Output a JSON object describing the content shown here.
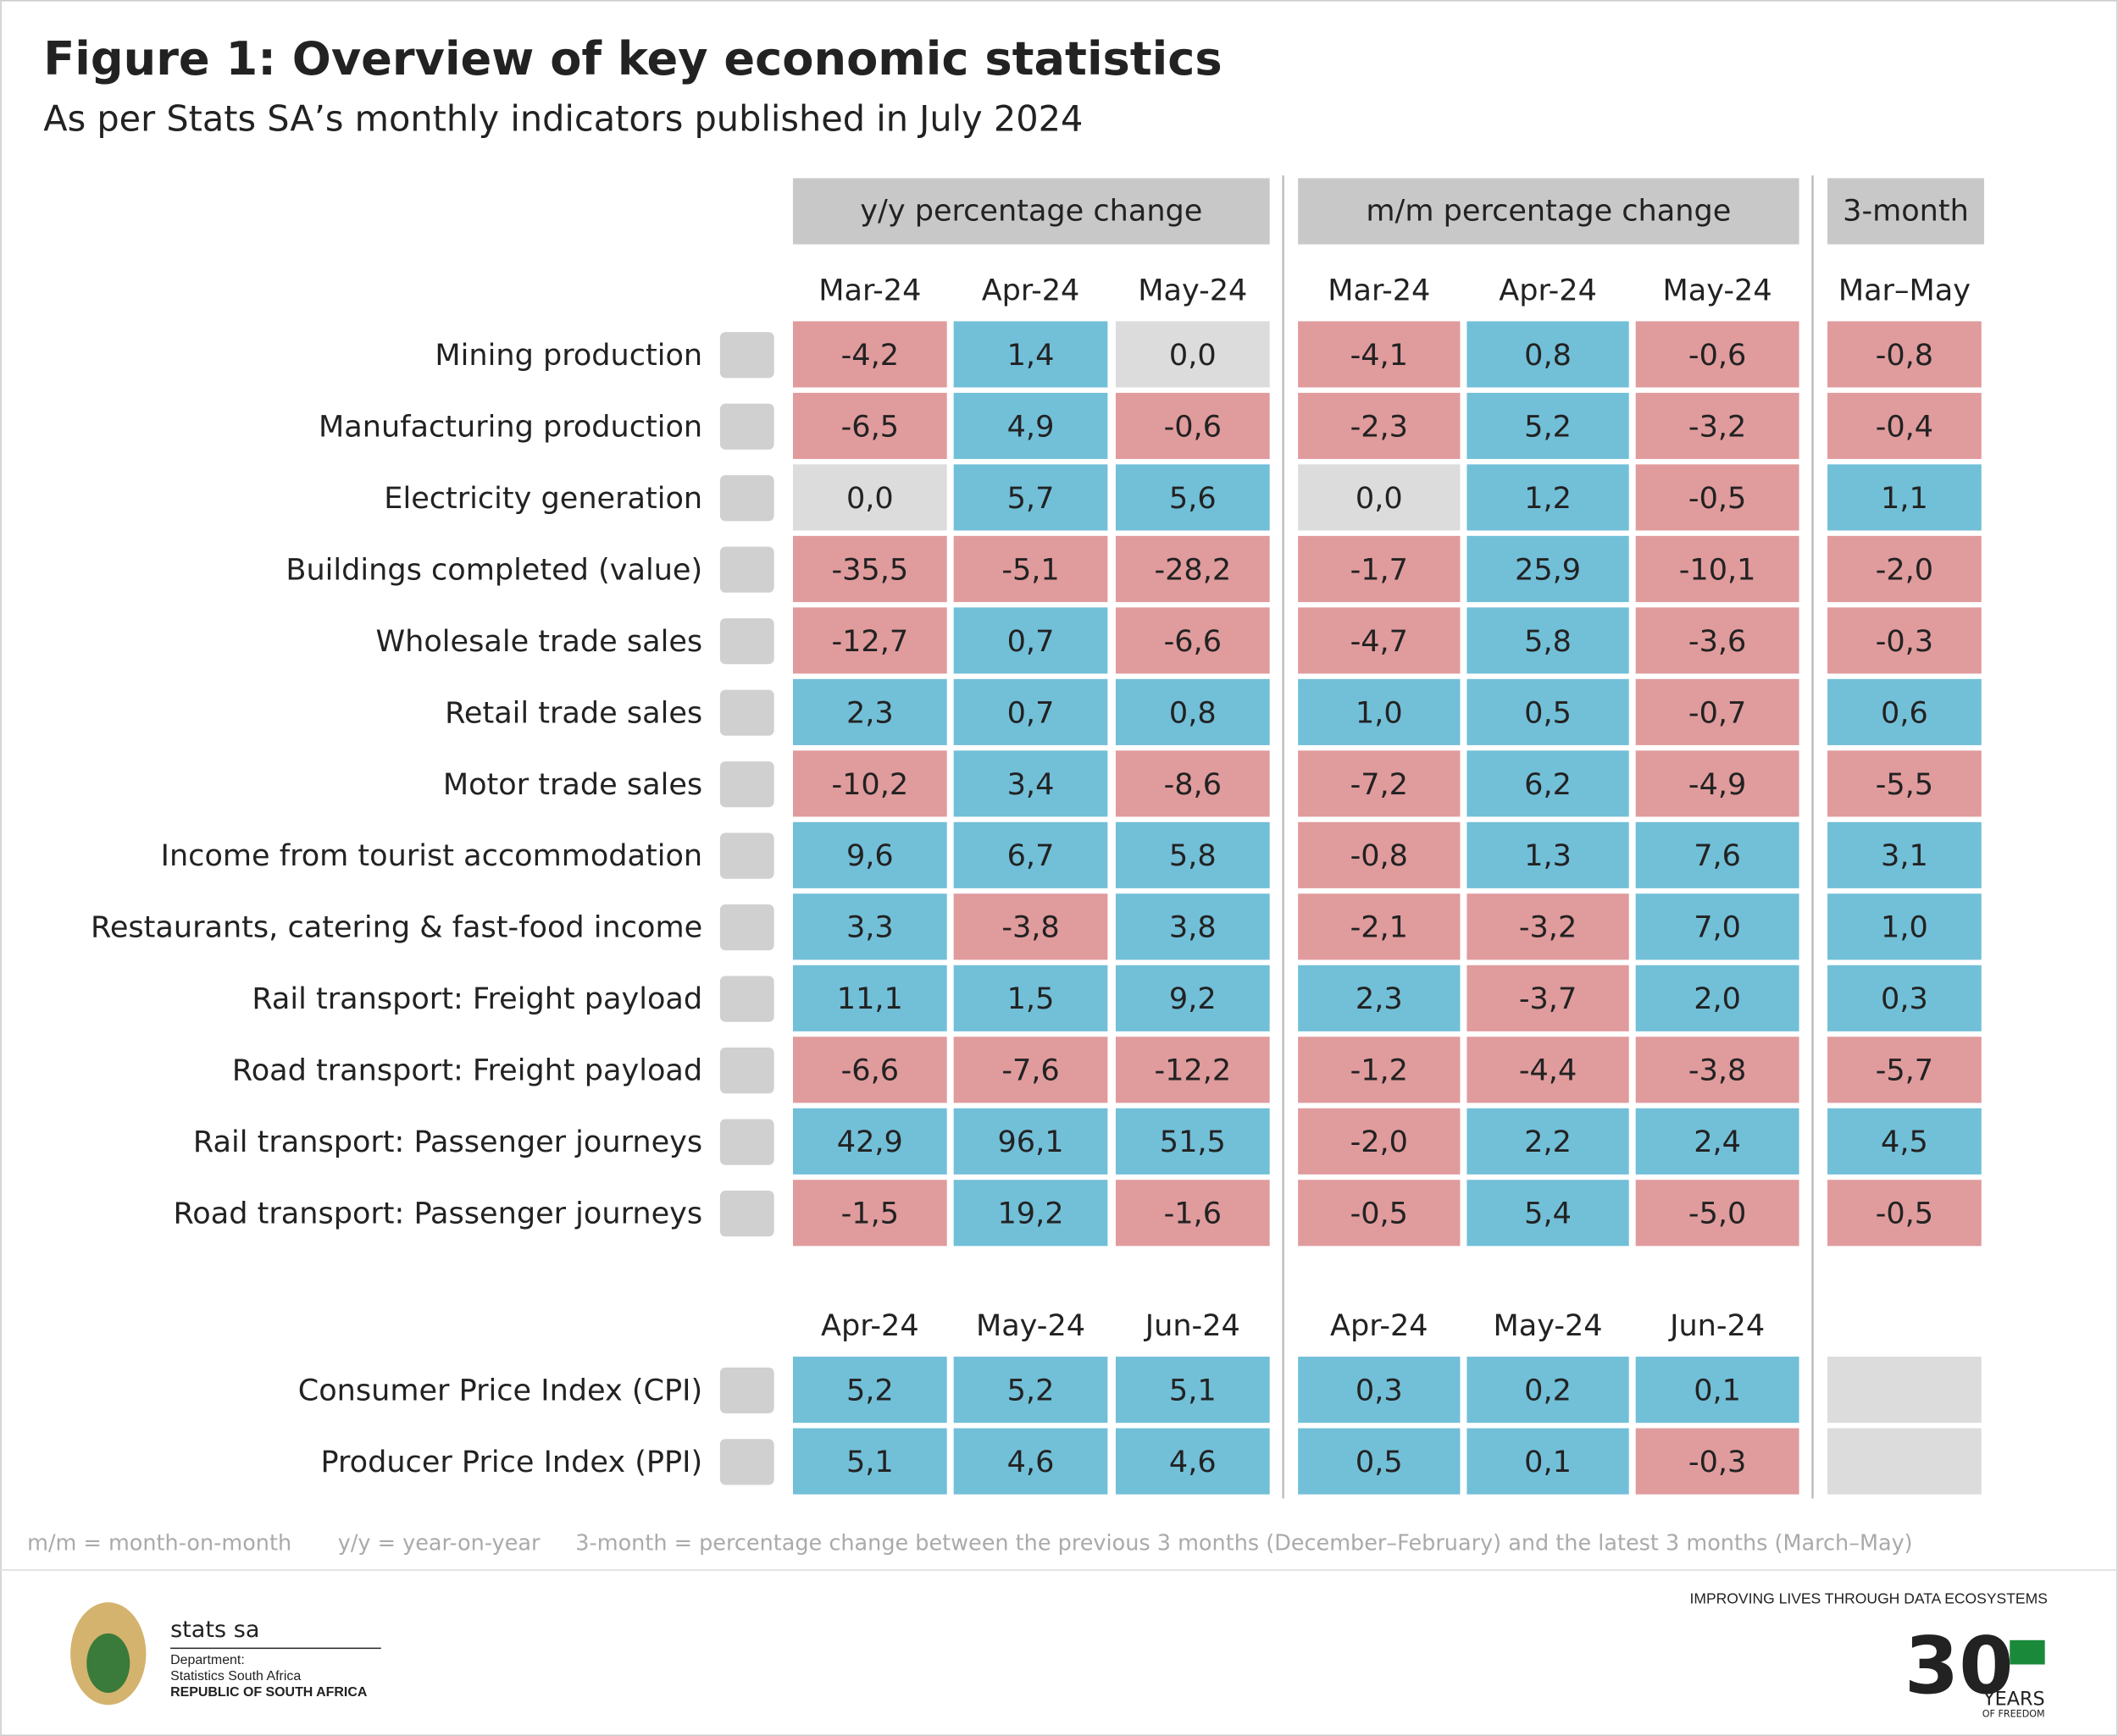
{
  "header": {
    "title": "Figure 1: Overview of key economic statistics",
    "subtitle": "As per Stats SA’s monthly indicators published in July 2024"
  },
  "groups": [
    "y/y percentage change",
    "m/m percentage change",
    "3-month"
  ],
  "columns": [
    "Mar-24",
    "Apr-24",
    "May-24",
    "Mar-24",
    "Apr-24",
    "May-24",
    "Mar–May"
  ],
  "rows": [
    {
      "label": "Mining production",
      "values": [
        "-4,2",
        "1,4",
        "0,0",
        "-4,1",
        "0,8",
        "-0,6",
        "-0,8"
      ]
    },
    {
      "label": "Manufacturing production",
      "values": [
        "-6,5",
        "4,9",
        "-0,6",
        "-2,3",
        "5,2",
        "-3,2",
        "-0,4"
      ]
    },
    {
      "label": "Electricity generation",
      "values": [
        "0,0",
        "5,7",
        "5,6",
        "0,0",
        "1,2",
        "-0,5",
        "1,1"
      ]
    },
    {
      "label": "Buildings completed (value)",
      "values": [
        "-35,5",
        "-5,1",
        "-28,2",
        "-1,7",
        "25,9",
        "-10,1",
        "-2,0"
      ]
    },
    {
      "label": "Wholesale trade sales",
      "values": [
        "-12,7",
        "0,7",
        "-6,6",
        "-4,7",
        "5,8",
        "-3,6",
        "-0,3"
      ]
    },
    {
      "label": "Retail trade sales",
      "values": [
        "2,3",
        "0,7",
        "0,8",
        "1,0",
        "0,5",
        "-0,7",
        "0,6"
      ]
    },
    {
      "label": "Motor trade sales",
      "values": [
        "-10,2",
        "3,4",
        "-8,6",
        "-7,2",
        "6,2",
        "-4,9",
        "-5,5"
      ]
    },
    {
      "label": "Income from tourist accommodation",
      "values": [
        "9,6",
        "6,7",
        "5,8",
        "-0,8",
        "1,3",
        "7,6",
        "3,1"
      ]
    },
    {
      "label": "Restaurants, catering & fast-food income",
      "values": [
        "3,3",
        "-3,8",
        "3,8",
        "-2,1",
        "-3,2",
        "7,0",
        "1,0"
      ]
    },
    {
      "label": "Rail transport: Freight payload",
      "values": [
        "11,1",
        "1,5",
        "9,2",
        "2,3",
        "-3,7",
        "2,0",
        "0,3"
      ]
    },
    {
      "label": "Road transport: Freight payload",
      "values": [
        "-6,6",
        "-7,6",
        "-12,2",
        "-1,2",
        "-4,4",
        "-3,8",
        "-5,7"
      ]
    },
    {
      "label": "Rail transport: Passenger journeys",
      "values": [
        "42,9",
        "96,1",
        "51,5",
        "-2,0",
        "2,2",
        "2,4",
        "4,5"
      ]
    },
    {
      "label": "Road transport: Passenger journeys",
      "values": [
        "-1,5",
        "19,2",
        "-1,6",
        "-0,5",
        "5,4",
        "-5,0",
        "-0,5"
      ]
    }
  ],
  "price_columns": [
    "Apr-24",
    "May-24",
    "Jun-24",
    "Apr-24",
    "May-24",
    "Jun-24"
  ],
  "price_rows": [
    {
      "label": "Consumer Price Index (CPI)",
      "values": [
        "5,2",
        "5,2",
        "5,1",
        "0,3",
        "0,2",
        "0,1"
      ]
    },
    {
      "label": "Producer Price Index (PPI)",
      "values": [
        "5,1",
        "4,6",
        "4,6",
        "0,5",
        "0,1",
        "-0,3"
      ]
    }
  ],
  "footnotes": [
    "m/m = month-on-month",
    "y/y = year-on-year",
    "3-month = percentage change between the previous 3 months (December–February) and the latest 3 months (March–May)"
  ],
  "footer": {
    "brand": "stats sa",
    "dept": "Department:",
    "org": "Statistics South Africa",
    "country": "REPUBLIC OF SOUTH AFRICA",
    "slogan": "IMPROVING LIVES THROUGH DATA ECOSYSTEMS",
    "years_number": "30",
    "years": "YEARS",
    "freedom": "OF FREEDOM"
  }
}
